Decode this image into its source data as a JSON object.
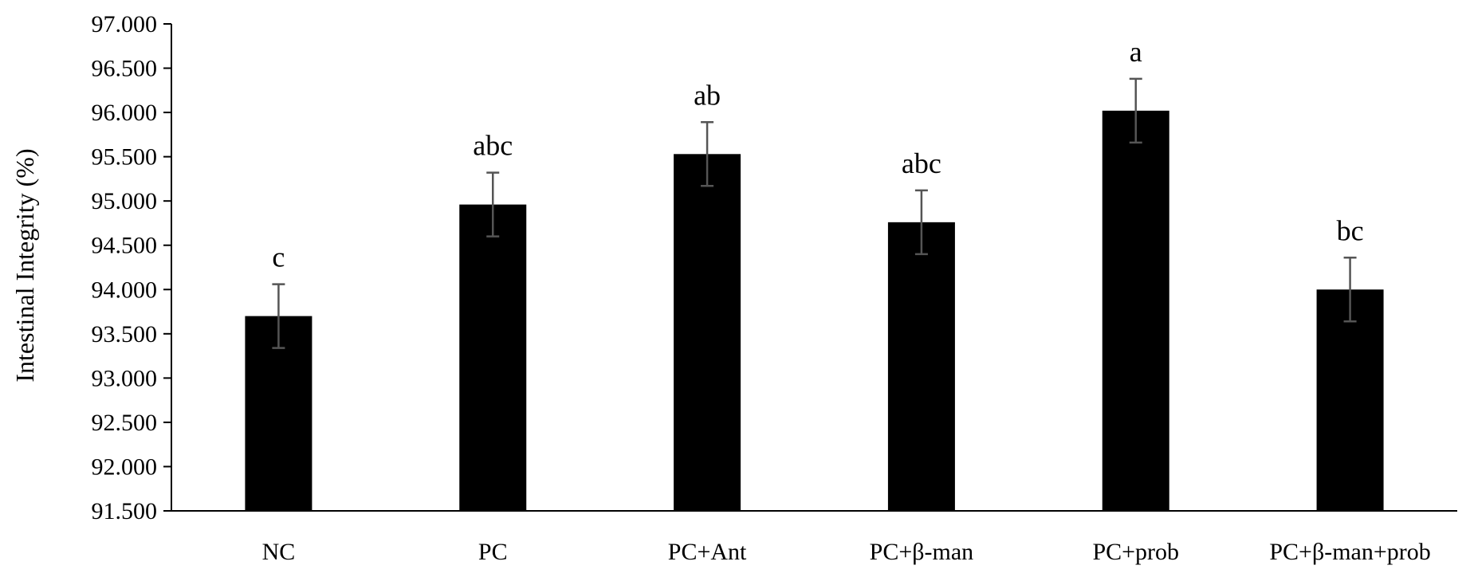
{
  "chart_data": {
    "type": "bar",
    "title": "",
    "xlabel": "",
    "ylabel": "Intestinal Integrity  (%)",
    "ylim": [
      91.5,
      97.0
    ],
    "ytick_step": 0.5,
    "ytick_labels": [
      "91.500",
      "92.000",
      "92.500",
      "93.000",
      "93.500",
      "94.000",
      "94.500",
      "95.000",
      "95.500",
      "96.000",
      "96.500",
      "97.000"
    ],
    "categories": [
      "NC",
      "PC",
      "PC+Ant",
      "PC+β-man",
      "PC+prob",
      "PC+β-man+prob"
    ],
    "values": [
      93.7,
      94.96,
      95.53,
      94.76,
      96.02,
      94.0
    ],
    "error": [
      0.36,
      0.36,
      0.36,
      0.36,
      0.36,
      0.36
    ],
    "data_labels": [
      "c",
      "abc",
      "ab",
      "abc",
      "a",
      "bc"
    ],
    "grid": false,
    "legend": "none",
    "colors": {
      "bar": "#000000",
      "error_bar": "#555555",
      "axis": "#000000"
    }
  }
}
